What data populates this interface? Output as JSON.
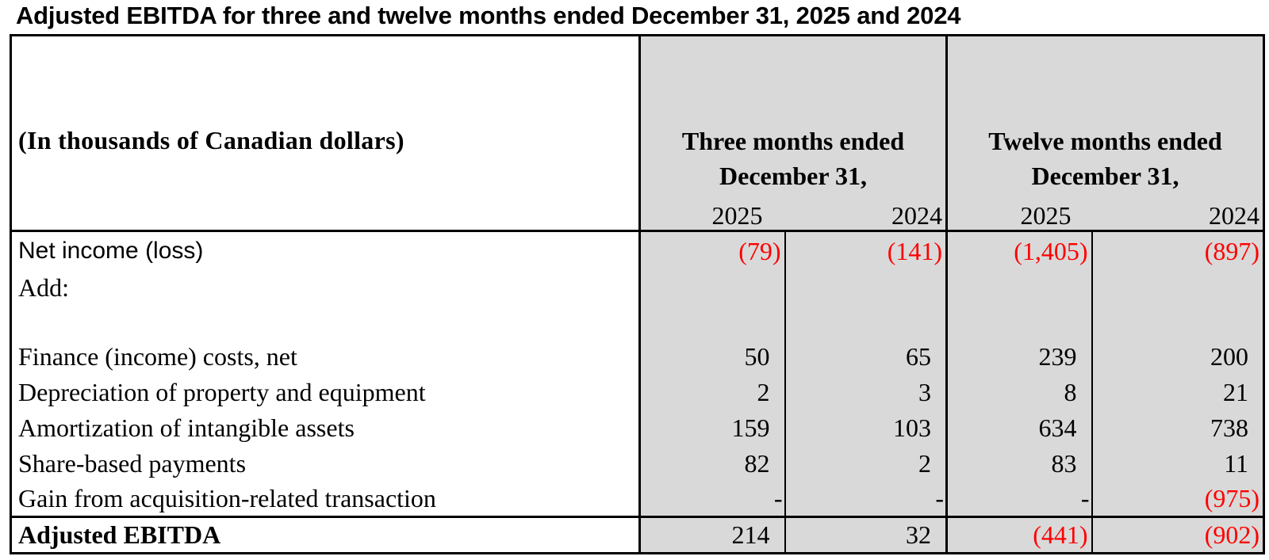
{
  "title": "Adjusted EBITDA for three and twelve months ended December 31, 2025 and 2024",
  "header": {
    "units_label": "(In thousands of Canadian dollars)",
    "group_three": {
      "line1": "Three months ended",
      "line2": "December 31,"
    },
    "group_twelve": {
      "line1": "Twelve months ended",
      "line2": "December 31,"
    },
    "years": [
      "2025",
      "2024",
      "2025",
      "2024"
    ]
  },
  "rows": {
    "net_income": {
      "label": "Net income (loss)",
      "values": [
        "(79)",
        "(141)",
        "(1,405)",
        "(897)"
      ]
    },
    "add": {
      "label": "Add:"
    },
    "finance": {
      "label": "Finance (income) costs, net",
      "values": [
        "50",
        "65",
        "239",
        "200"
      ]
    },
    "depreciation": {
      "label": "Depreciation of property and equipment",
      "values": [
        "2",
        "3",
        "8",
        "21"
      ]
    },
    "amortization": {
      "label": "Amortization of intangible assets",
      "values": [
        "159",
        "103",
        "634",
        "738"
      ]
    },
    "share_based": {
      "label": "Share-based payments",
      "values": [
        "82",
        "2",
        "83",
        "11"
      ]
    },
    "gain": {
      "label": "Gain from acquisition-related transaction",
      "values": [
        "-",
        "-",
        "-",
        "(975)"
      ]
    },
    "adjusted_ebitda": {
      "label": "Adjusted EBITDA",
      "values": [
        "214",
        "32",
        "(441)",
        "(902)"
      ]
    }
  },
  "colors": {
    "negative": "#ff0000",
    "shade": "#d9d9d9"
  }
}
